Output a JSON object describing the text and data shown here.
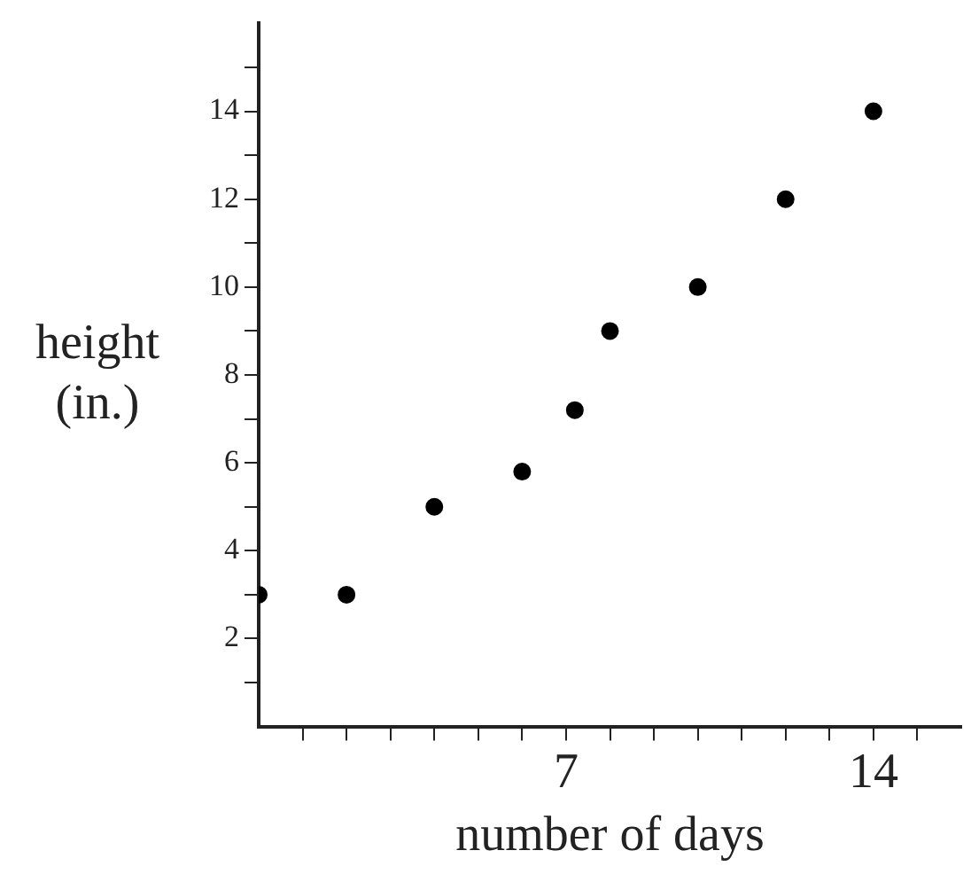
{
  "chart_data": {
    "type": "scatter",
    "xlabel": "number of days",
    "ylabel": "height (in.)",
    "x": [
      0,
      2,
      4,
      6,
      7.2,
      8,
      10,
      12,
      14
    ],
    "values": [
      3,
      3,
      5,
      5.8,
      7.2,
      9,
      10,
      12,
      14
    ],
    "color": "#000000",
    "marker": "circle",
    "grid": false,
    "legend": false,
    "xlim": [
      0,
      16
    ],
    "ylim": [
      0,
      16
    ],
    "xticks": [
      {
        "value": 1,
        "label": null
      },
      {
        "value": 2,
        "label": null
      },
      {
        "value": 3,
        "label": null
      },
      {
        "value": 4,
        "label": null
      },
      {
        "value": 5,
        "label": null
      },
      {
        "value": 6,
        "label": null
      },
      7,
      {
        "value": 8,
        "label": null
      },
      {
        "value": 9,
        "label": null
      },
      {
        "value": 10,
        "label": null
      },
      {
        "value": 11,
        "label": null
      },
      {
        "value": 12,
        "label": null
      },
      {
        "value": 13,
        "label": null
      },
      14,
      {
        "value": 15,
        "label": null
      }
    ],
    "yticks": [
      {
        "value": 1,
        "label": null
      },
      2,
      {
        "value": 3,
        "label": null
      },
      4,
      {
        "value": 5,
        "label": null
      },
      6,
      {
        "value": 7,
        "label": null
      },
      8,
      {
        "value": 9,
        "label": null
      },
      10,
      {
        "value": 11,
        "label": null
      },
      12,
      {
        "value": 13,
        "label": null
      },
      14,
      {
        "value": 15,
        "label": null
      }
    ]
  }
}
